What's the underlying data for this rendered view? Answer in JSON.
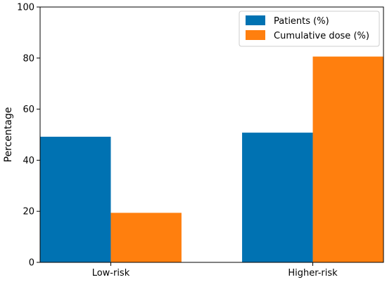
{
  "chart_data": {
    "type": "bar",
    "title": "",
    "xlabel": "",
    "ylabel": "Percentage",
    "ylim": [
      0,
      100
    ],
    "yticks": [
      0,
      20,
      40,
      60,
      80,
      100
    ],
    "categories": [
      "Low-risk",
      "Higher-risk"
    ],
    "series": [
      {
        "name": "Patients (%)",
        "values": [
          49.2,
          50.8
        ],
        "color": "#0072b2"
      },
      {
        "name": "Cumulative dose (%)",
        "values": [
          19.4,
          80.6
        ],
        "color": "#ff7f0e"
      }
    ],
    "legend_position": "top-right",
    "grid": false
  }
}
